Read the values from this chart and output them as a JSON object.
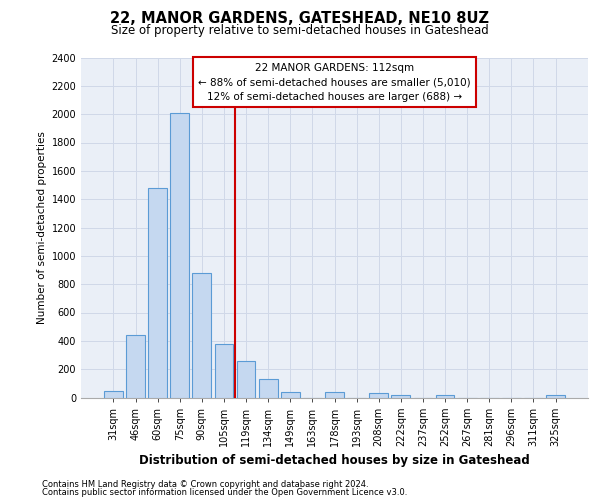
{
  "title1": "22, MANOR GARDENS, GATESHEAD, NE10 8UZ",
  "title2": "Size of property relative to semi-detached houses in Gateshead",
  "xlabel": "Distribution of semi-detached houses by size in Gateshead",
  "ylabel": "Number of semi-detached properties",
  "categories": [
    "31sqm",
    "46sqm",
    "60sqm",
    "75sqm",
    "90sqm",
    "105sqm",
    "119sqm",
    "134sqm",
    "149sqm",
    "163sqm",
    "178sqm",
    "193sqm",
    "208sqm",
    "222sqm",
    "237sqm",
    "252sqm",
    "267sqm",
    "281sqm",
    "296sqm",
    "311sqm",
    "325sqm"
  ],
  "values": [
    45,
    440,
    1480,
    2010,
    880,
    375,
    255,
    130,
    40,
    0,
    40,
    0,
    30,
    20,
    0,
    20,
    0,
    0,
    0,
    0,
    15
  ],
  "bar_color": "#c5d8f0",
  "bar_edge_color": "#5b9bd5",
  "grid_color": "#d0d8e8",
  "bg_color": "#eaeff7",
  "vline_color": "#cc0000",
  "vline_pos": 5.5,
  "annotation_text": "22 MANOR GARDENS: 112sqm\n← 88% of semi-detached houses are smaller (5,010)\n12% of semi-detached houses are larger (688) →",
  "ann_box_color": "#cc0000",
  "ylim_max": 2400,
  "yticks": [
    0,
    200,
    400,
    600,
    800,
    1000,
    1200,
    1400,
    1600,
    1800,
    2000,
    2200,
    2400
  ],
  "footer1": "Contains HM Land Registry data © Crown copyright and database right 2024.",
  "footer2": "Contains public sector information licensed under the Open Government Licence v3.0.",
  "title1_fontsize": 10.5,
  "title2_fontsize": 8.5,
  "xlabel_fontsize": 8.5,
  "ylabel_fontsize": 7.5,
  "tick_fontsize": 7,
  "ann_fontsize": 7.5,
  "footer_fontsize": 6.0
}
